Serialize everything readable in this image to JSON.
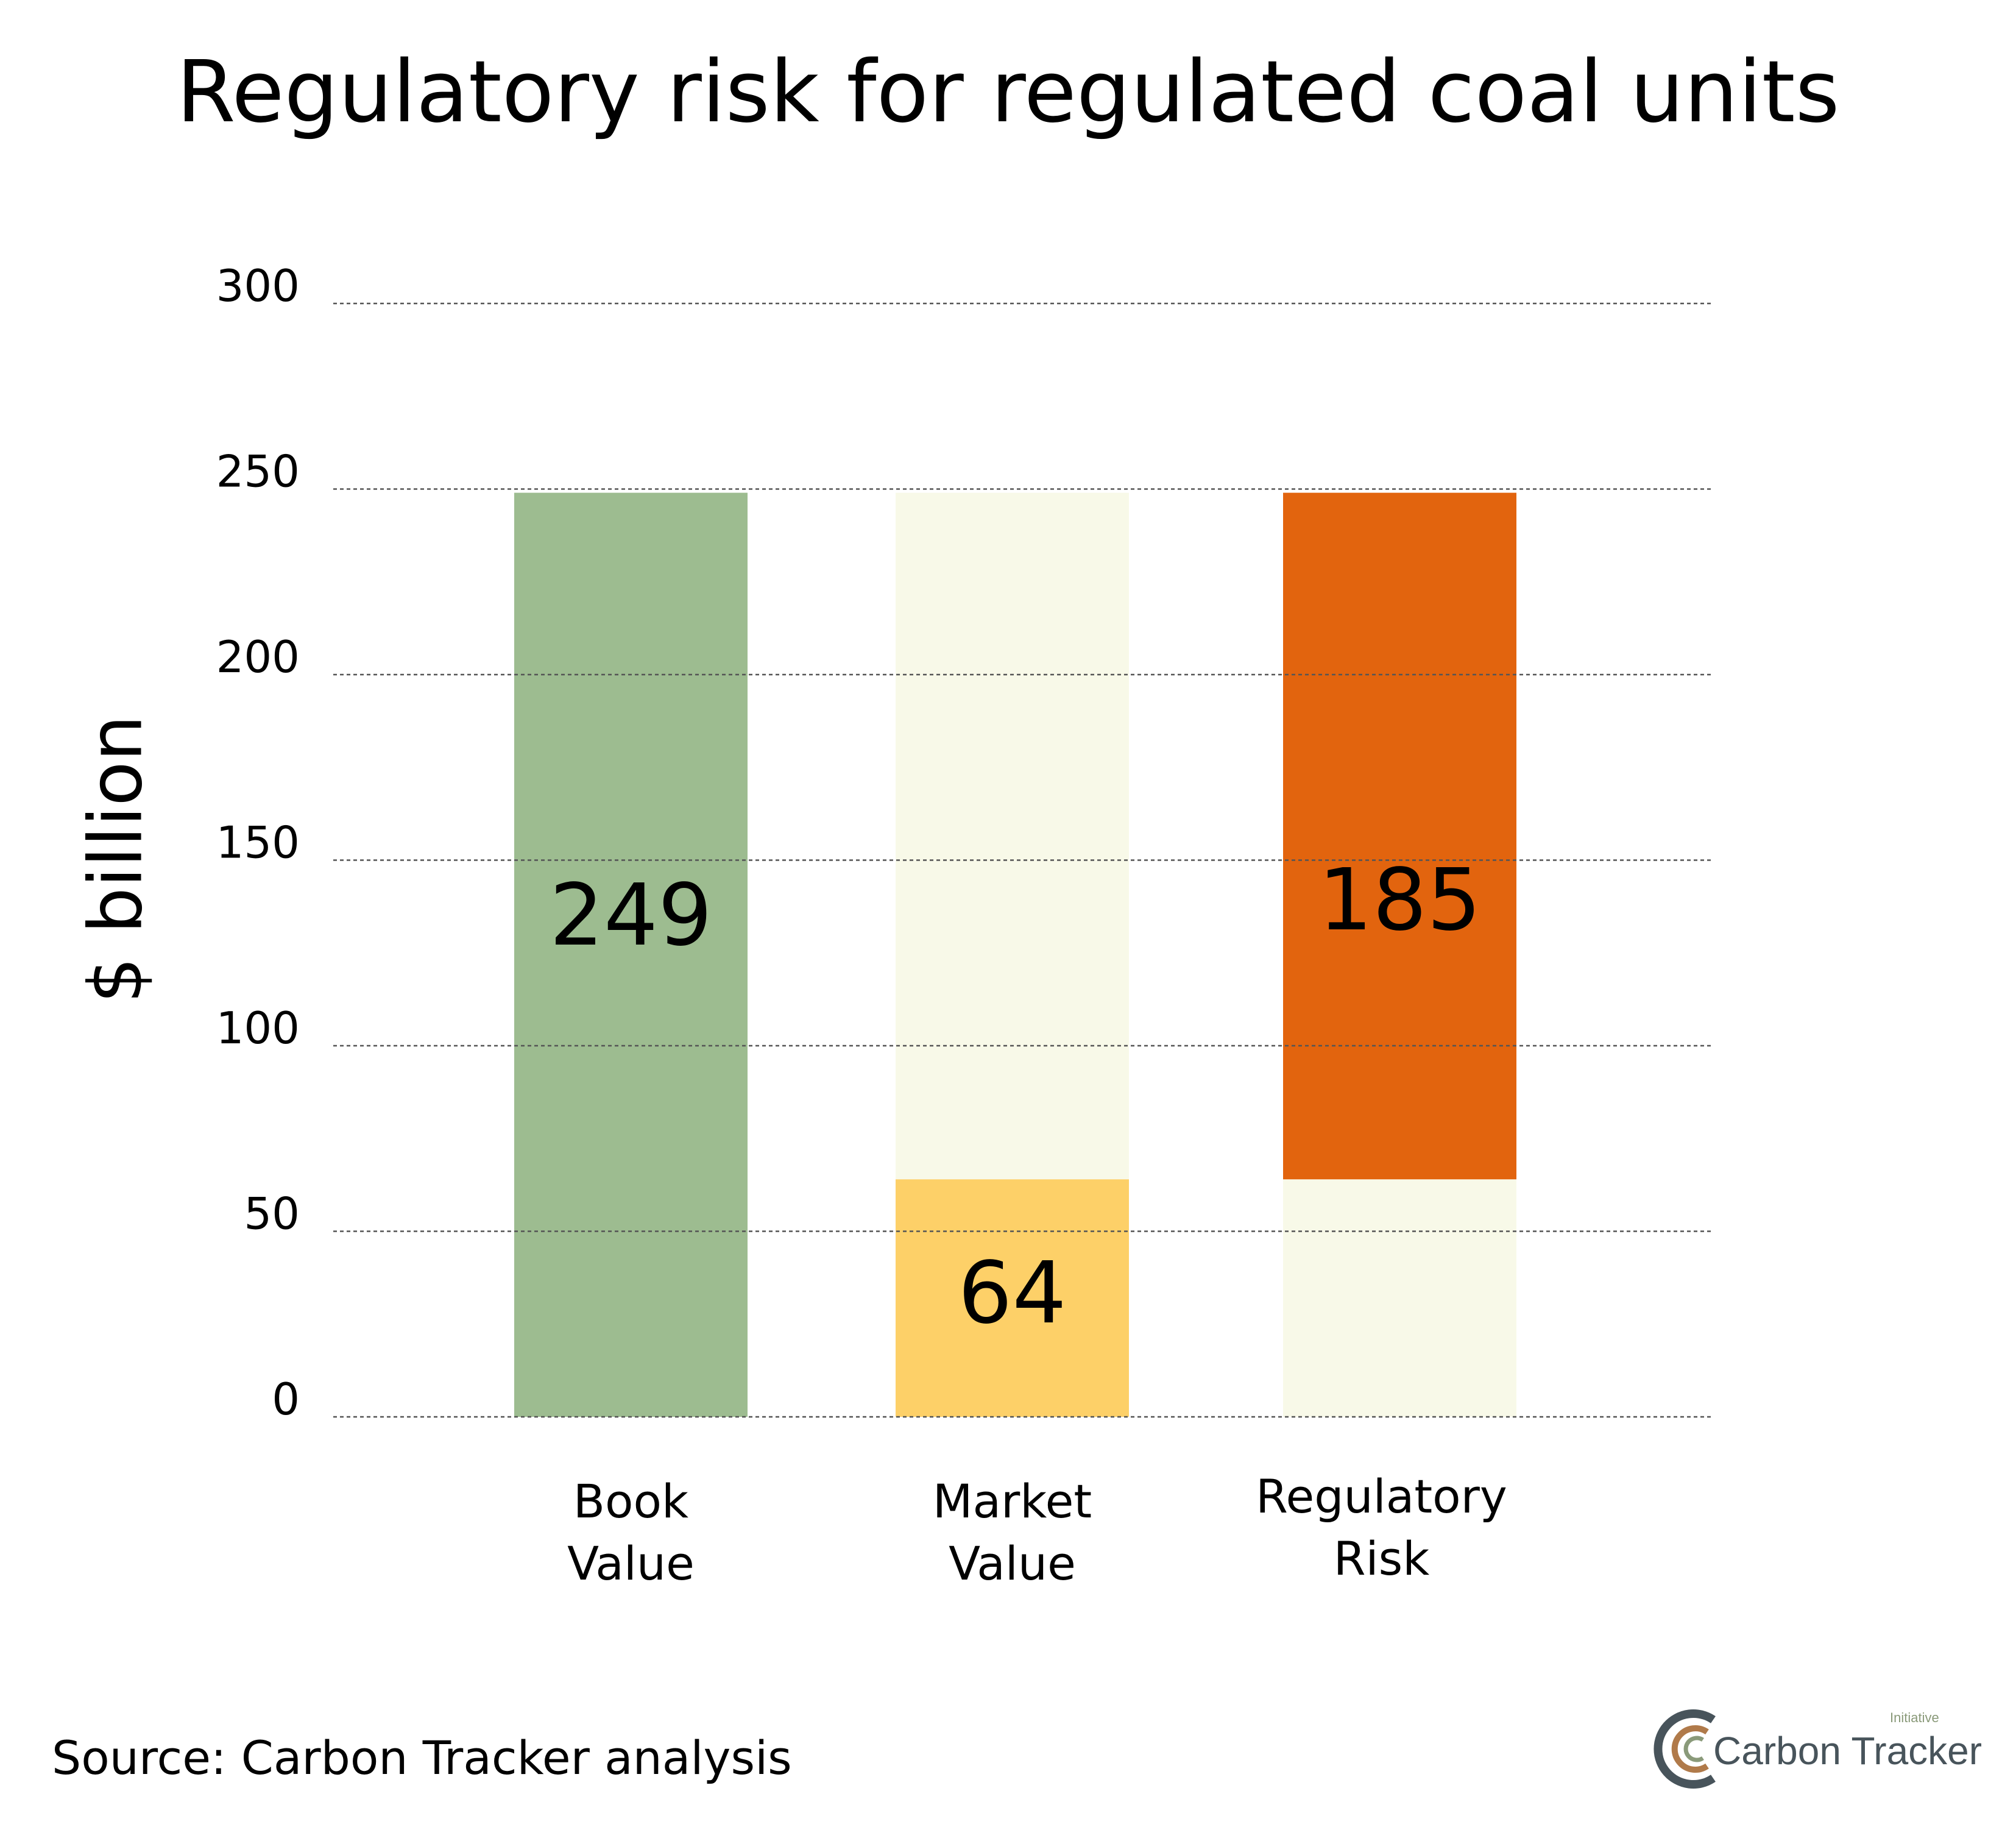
{
  "chart_data": {
    "type": "bar",
    "title": "Regulatory risk for regulated coal units",
    "ylabel": "$ billion",
    "xlabel": "",
    "ylim": [
      0,
      300
    ],
    "yticks": [
      0,
      50,
      100,
      150,
      200,
      250,
      300
    ],
    "grid": true,
    "categories": [
      {
        "lines": [
          "Book",
          "Value"
        ]
      },
      {
        "lines": [
          "Market",
          "Value"
        ]
      },
      {
        "lines": [
          "Regulatory",
          "Risk"
        ]
      }
    ],
    "bars": [
      {
        "name": "Book Value",
        "base": 0,
        "value": 249,
        "label": "249",
        "color": "#9dbc90",
        "background_to": null
      },
      {
        "name": "Market Value",
        "base": 0,
        "value": 64,
        "label": "64",
        "color": "#fdd068",
        "background_to": 249
      },
      {
        "name": "Regulatory Risk",
        "base": 64,
        "value": 185,
        "label": "185",
        "color": "#e2640e",
        "background_to": 64
      }
    ],
    "background_color": "#f8f9e8"
  },
  "source": "Source: Carbon Tracker analysis",
  "logo": {
    "text": "Carbon Tracker",
    "small_text": "Initiative"
  }
}
